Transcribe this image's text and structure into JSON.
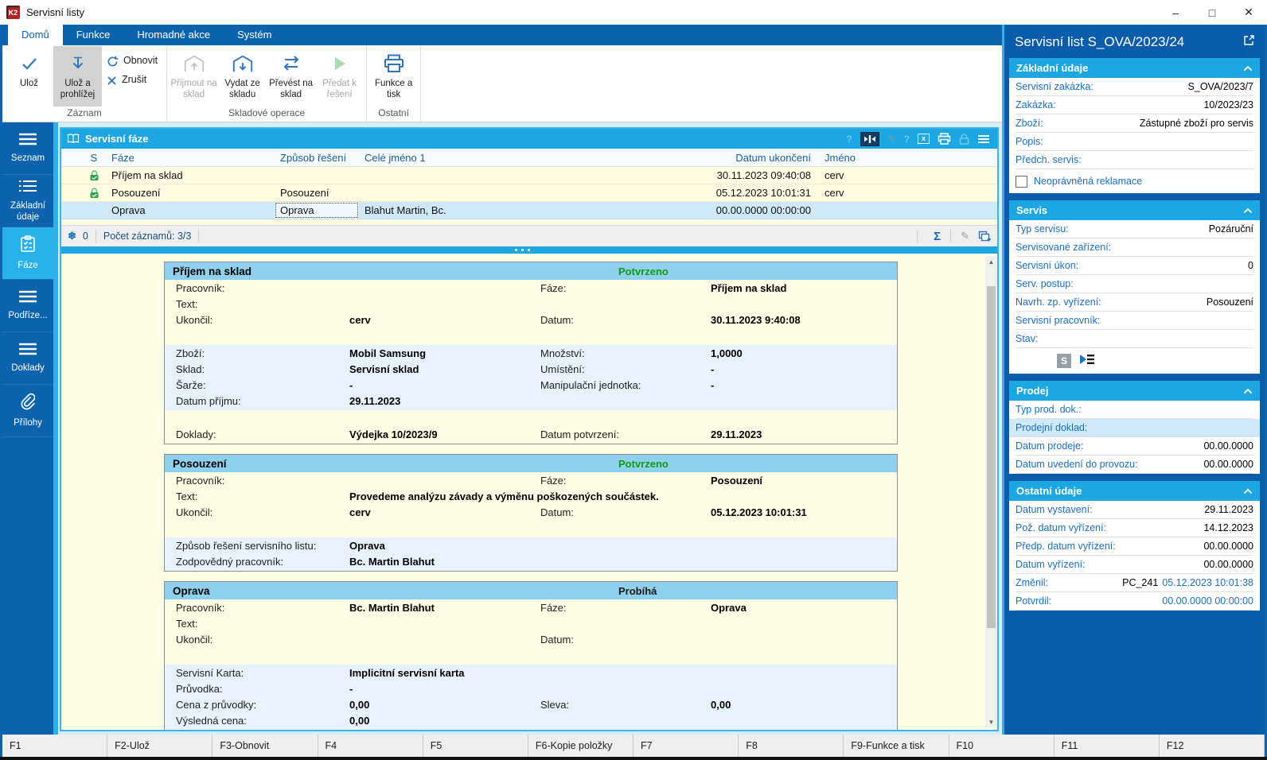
{
  "window": {
    "title": "Servisní listy",
    "controls": {
      "minimize": "–",
      "maximize": "□",
      "close": "✕"
    }
  },
  "colors": {
    "accent_cyan": "#1ca6e2",
    "dark_blue": "#0d63ad",
    "inspector_blue": "#0b5caa",
    "row_yellow": "#fffce3",
    "selected_row": "#cfe9f8",
    "status_ok_green": "#0f9d10"
  },
  "ribbon": {
    "tabs": [
      {
        "label": "Domů",
        "active": true
      },
      {
        "label": "Funkce",
        "active": false
      },
      {
        "label": "Hromadné akce",
        "active": false
      },
      {
        "label": "Systém",
        "active": false
      }
    ],
    "groups": [
      {
        "label": "Záznam",
        "buttons": [
          {
            "label": "Ulož"
          },
          {
            "label": "Ulož a prohlížej"
          },
          {
            "label": "Obnovit"
          },
          {
            "label": "Zrušit"
          }
        ]
      },
      {
        "label": "Skladové operace",
        "buttons": [
          {
            "label": "Přijmout na sklad",
            "disabled": true
          },
          {
            "label": "Vydat ze skladu"
          },
          {
            "label": "Převést na sklad"
          },
          {
            "label": "Předat k řešení",
            "disabled": true
          }
        ]
      },
      {
        "label": "Ostatní",
        "buttons": [
          {
            "label": "Funkce a tisk"
          }
        ]
      }
    ]
  },
  "sidebar": {
    "items": [
      {
        "label": "Seznam",
        "icon": "menu",
        "active": false
      },
      {
        "label": "Základní údaje",
        "icon": "list",
        "active": false
      },
      {
        "label": "Fáze",
        "icon": "clipboard",
        "active": true
      },
      {
        "label": "Podříze...",
        "icon": "menu",
        "active": false
      },
      {
        "label": "Doklady",
        "icon": "menu",
        "active": false
      },
      {
        "label": "Přílohy",
        "icon": "paperclip",
        "active": false
      }
    ]
  },
  "table": {
    "title": "Servisní fáze",
    "columns": [
      "S",
      "Fáze",
      "Způsob řešení",
      "Celé jméno 1",
      "Datum ukončení",
      "Jméno"
    ],
    "rows": [
      {
        "locked": true,
        "faze": "Příjem na sklad",
        "zpusob": "",
        "jmeno1": "",
        "datum": "30.11.2023 09:40:08",
        "jmeno": "cerv",
        "selected": false,
        "focused_cell": ""
      },
      {
        "locked": true,
        "faze": "Posouzení",
        "zpusob": "Posouzení",
        "jmeno1": "",
        "datum": "05.12.2023 10:01:31",
        "jmeno": "cerv",
        "selected": false,
        "focused_cell": ""
      },
      {
        "locked": false,
        "faze": "Oprava",
        "zpusob": "Oprava",
        "jmeno1": "Blahut Martin, Bc.",
        "datum": "00.00.0000 00:00:00",
        "jmeno": "",
        "selected": true,
        "focused_cell": "zpusob"
      }
    ],
    "footer": {
      "flag_count": "0",
      "records": "Počet záznamů: 3/3",
      "sigma": "Σ"
    }
  },
  "detail_panels": [
    {
      "title": "Příjem na sklad",
      "status": "Potvrzeno",
      "status_ok": true,
      "sections": [
        {
          "tone": "yellow",
          "rows": [
            {
              "l1": "Pracovník:",
              "v1": "",
              "l2": "Fáze:",
              "v2": "Příjem na sklad"
            },
            {
              "l1": "Text:",
              "v1": "",
              "l2": "",
              "v2": ""
            },
            {
              "l1": "Ukončil:",
              "v1": "cerv",
              "l2": "Datum:",
              "v2": "30.11.2023 9:40:08"
            },
            {
              "l1": "",
              "v1": "",
              "l2": "",
              "v2": ""
            }
          ]
        },
        {
          "tone": "blue",
          "rows": [
            {
              "l1": "Zboží:",
              "v1": "Mobil Samsung",
              "l2": "Množství:",
              "v2": "1,0000"
            },
            {
              "l1": "Sklad:",
              "v1": "Servisní sklad",
              "l2": "Umístění:",
              "v2": "-"
            },
            {
              "l1": "Šarže:",
              "v1": "-",
              "l2": "Manipulační jednotka:",
              "v2": "-"
            },
            {
              "l1": "Datum příjmu:",
              "v1": "29.11.2023",
              "l2": "",
              "v2": ""
            }
          ]
        },
        {
          "tone": "yellow",
          "rows": [
            {
              "l1": "",
              "v1": "",
              "l2": "",
              "v2": ""
            },
            {
              "l1": "Doklady:",
              "v1": "Výdejka 10/2023/9",
              "l2": "Datum potvrzení:",
              "v2": "29.11.2023"
            }
          ]
        }
      ]
    },
    {
      "title": "Posouzení",
      "status": "Potvrzeno",
      "status_ok": true,
      "sections": [
        {
          "tone": "yellow",
          "rows": [
            {
              "l1": "Pracovník:",
              "v1": "",
              "l2": "Fáze:",
              "v2": "Posouzení"
            },
            {
              "l1": "Text:",
              "v1": "Provedeme analýzu závady a výměnu poškozených součástek.",
              "l2": "",
              "v2": ""
            },
            {
              "l1": "Ukončil:",
              "v1": "cerv",
              "l2": "Datum:",
              "v2": "05.12.2023 10:01:31"
            },
            {
              "l1": "",
              "v1": "",
              "l2": "",
              "v2": ""
            }
          ]
        },
        {
          "tone": "blue",
          "rows": [
            {
              "l1": "Způsob řešení servisního listu:",
              "v1": "Oprava",
              "l2": "",
              "v2": ""
            },
            {
              "l1": "Zodpovědný pracovník:",
              "v1": "Bc. Martin Blahut",
              "l2": "",
              "v2": ""
            }
          ]
        }
      ]
    },
    {
      "title": "Oprava",
      "status": "Probíhá",
      "status_ok": false,
      "sections": [
        {
          "tone": "yellow",
          "rows": [
            {
              "l1": "Pracovník:",
              "v1": "Bc. Martin Blahut",
              "l2": "Fáze:",
              "v2": "Oprava"
            },
            {
              "l1": "Text:",
              "v1": "",
              "l2": "",
              "v2": ""
            },
            {
              "l1": "Ukončil:",
              "v1": "",
              "l2": "Datum:",
              "v2": ""
            },
            {
              "l1": "",
              "v1": "",
              "l2": "",
              "v2": ""
            }
          ]
        },
        {
          "tone": "blue",
          "rows": [
            {
              "l1": "Servisní Karta:",
              "v1": "Implicitní servisní karta",
              "l2": "",
              "v2": ""
            },
            {
              "l1": "Průvodka:",
              "v1": "-",
              "l2": "",
              "v2": ""
            },
            {
              "l1": "Cena z průvodky:",
              "v1": "0,00",
              "l2": "Sleva:",
              "v2": "0,00"
            },
            {
              "l1": "Výsledná cena:",
              "v1": "0,00",
              "l2": "",
              "v2": ""
            }
          ]
        }
      ]
    }
  ],
  "inspector": {
    "title": "Servisní list S_OVA/2023/24",
    "sections": [
      {
        "title": "Základní údaje",
        "rows": [
          {
            "label": "Servisní zakázka:",
            "value": "S_OVA/2023/7"
          },
          {
            "label": "Zakázka:",
            "value": "10/2023/23"
          },
          {
            "label": "Zboží:",
            "value": "Zástupné zboží pro servis"
          },
          {
            "label": "Popis:",
            "value": ""
          },
          {
            "label": "Předch. servis:",
            "value": ""
          }
        ],
        "checkbox": {
          "label": "Neoprávněná reklamace",
          "checked": false
        }
      },
      {
        "title": "Servis",
        "rows": [
          {
            "label": "Typ servisu:",
            "value": "Pozáruční"
          },
          {
            "label": "Servisované zařízení:",
            "value": ""
          },
          {
            "label": "Servisní úkon:",
            "value": "0"
          },
          {
            "label": "Serv. postup:",
            "value": ""
          },
          {
            "label": "Navrh. zp. vyřízení:",
            "value": "Posouzení"
          },
          {
            "label": "Servisní pracovník:",
            "value": ""
          },
          {
            "label": "Stav:",
            "value": ""
          }
        ],
        "icons": [
          "s-badge",
          "workflow"
        ]
      },
      {
        "title": "Prodej",
        "rows": [
          {
            "label": "Typ prod. dok.:",
            "value": ""
          },
          {
            "label": "Prodejní doklad:",
            "value": "",
            "highlight": true
          },
          {
            "label": "Datum prodeje:",
            "value": "00.00.0000"
          },
          {
            "label": "Datum uvedení do provozu:",
            "value": "00.00.0000"
          }
        ]
      },
      {
        "title": "Ostatní údaje",
        "rows": [
          {
            "label": "Datum vystavení:",
            "value": "29.11.2023"
          },
          {
            "label": "Pož. datum vyřízení:",
            "value": "14.12.2023"
          },
          {
            "label": "Předp. datum vyřízení:",
            "value": "00.00.0000"
          },
          {
            "label": "Datum vyřízení:",
            "value": "00.00.0000"
          },
          {
            "label": "Změnil:",
            "value": "PC_241",
            "value2": "05.12.2023 10:01:38"
          },
          {
            "label": "Potvrdil:",
            "value": "",
            "value2": "00.00.0000 00:00:00"
          }
        ]
      }
    ]
  },
  "statusbar": {
    "fkeys": [
      "F1",
      "F2-Ulož",
      "F3-Obnovit",
      "F4",
      "F5",
      "F6-Kopie položky",
      "F7",
      "F8",
      "F9-Funkce a tisk",
      "F10",
      "F11",
      "F12"
    ]
  }
}
